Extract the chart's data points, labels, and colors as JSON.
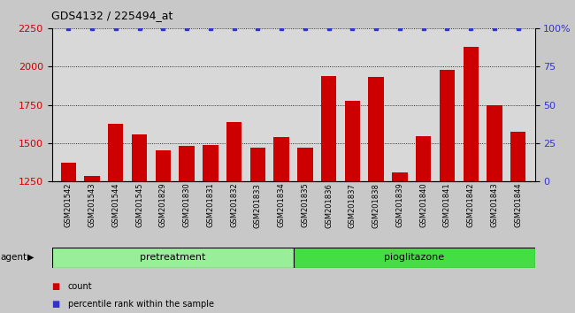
{
  "title": "GDS4132 / 225494_at",
  "samples": [
    "GSM201542",
    "GSM201543",
    "GSM201544",
    "GSM201545",
    "GSM201829",
    "GSM201830",
    "GSM201831",
    "GSM201832",
    "GSM201833",
    "GSM201834",
    "GSM201835",
    "GSM201836",
    "GSM201837",
    "GSM201838",
    "GSM201839",
    "GSM201840",
    "GSM201841",
    "GSM201842",
    "GSM201843",
    "GSM201844"
  ],
  "counts": [
    1375,
    1285,
    1625,
    1555,
    1455,
    1480,
    1490,
    1640,
    1470,
    1540,
    1470,
    1935,
    1775,
    1930,
    1310,
    1545,
    1980,
    2130,
    1745,
    1575
  ],
  "percentile_ranks": [
    100,
    100,
    100,
    100,
    100,
    100,
    100,
    100,
    100,
    100,
    100,
    100,
    100,
    100,
    100,
    100,
    100,
    100,
    100,
    100
  ],
  "pretreatment_count": 10,
  "pioglitazone_count": 10,
  "ylim_left": [
    1250,
    2250
  ],
  "ylim_right": [
    0,
    100
  ],
  "yticks_left": [
    1250,
    1500,
    1750,
    2000,
    2250
  ],
  "yticks_right": [
    0,
    25,
    50,
    75,
    100
  ],
  "ytick_labels_right": [
    "0",
    "25",
    "50",
    "75",
    "100%"
  ],
  "bar_color": "#cc0000",
  "dot_color": "#3333cc",
  "pretreatment_color": "#99ee99",
  "pioglitazone_color": "#44dd44",
  "agent_label": "agent",
  "pretreatment_label": "pretreatment",
  "pioglitazone_label": "pioglitazone",
  "legend_count_label": "count",
  "legend_percentile_label": "percentile rank within the sample",
  "background_color": "#c8c8c8",
  "plot_bg_color": "#d8d8d8",
  "bar_baseline": 1250,
  "grid_color": "#000000"
}
